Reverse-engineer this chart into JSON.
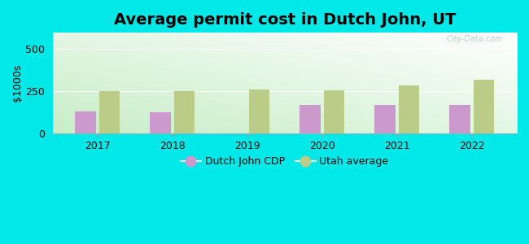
{
  "title": "Average permit cost in Dutch John, UT",
  "ylabel": "$1000s",
  "years": [
    2017,
    2018,
    2019,
    2020,
    2021,
    2022
  ],
  "dutch_john": [
    130,
    128,
    0,
    170,
    172,
    168
  ],
  "utah_avg": [
    250,
    250,
    262,
    258,
    284,
    320
  ],
  "bar_color_dutch": "#cc99cc",
  "bar_color_utah": "#bbcc88",
  "background_outer": "#00e8e8",
  "ylim": [
    0,
    600
  ],
  "yticks": [
    0,
    250,
    500
  ],
  "title_fontsize": 14,
  "label_fontsize": 9,
  "legend_dutch": "Dutch John CDP",
  "legend_utah": "Utah average",
  "bar_width": 0.28,
  "watermark": "City-Data.com"
}
